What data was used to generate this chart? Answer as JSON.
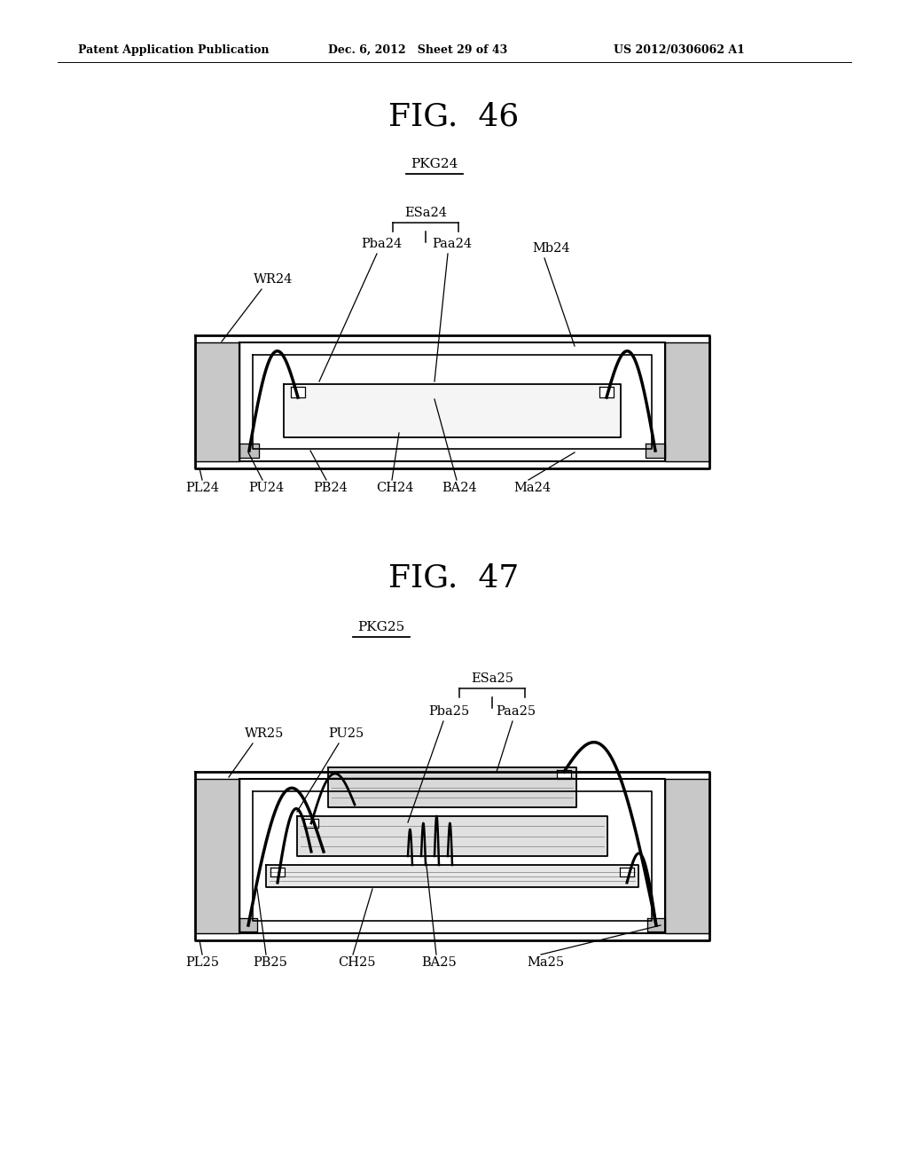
{
  "bg_color": "#ffffff",
  "header_left": "Patent Application Publication",
  "header_mid": "Dec. 6, 2012   Sheet 29 of 43",
  "header_right": "US 2012/0306062 A1",
  "fig46_title": "FIG.  46",
  "fig47_title": "FIG.  47",
  "fig46_pkg": "PKG24",
  "fig47_pkg": "PKG25",
  "text_color": "#000000",
  "line_color": "#000000"
}
